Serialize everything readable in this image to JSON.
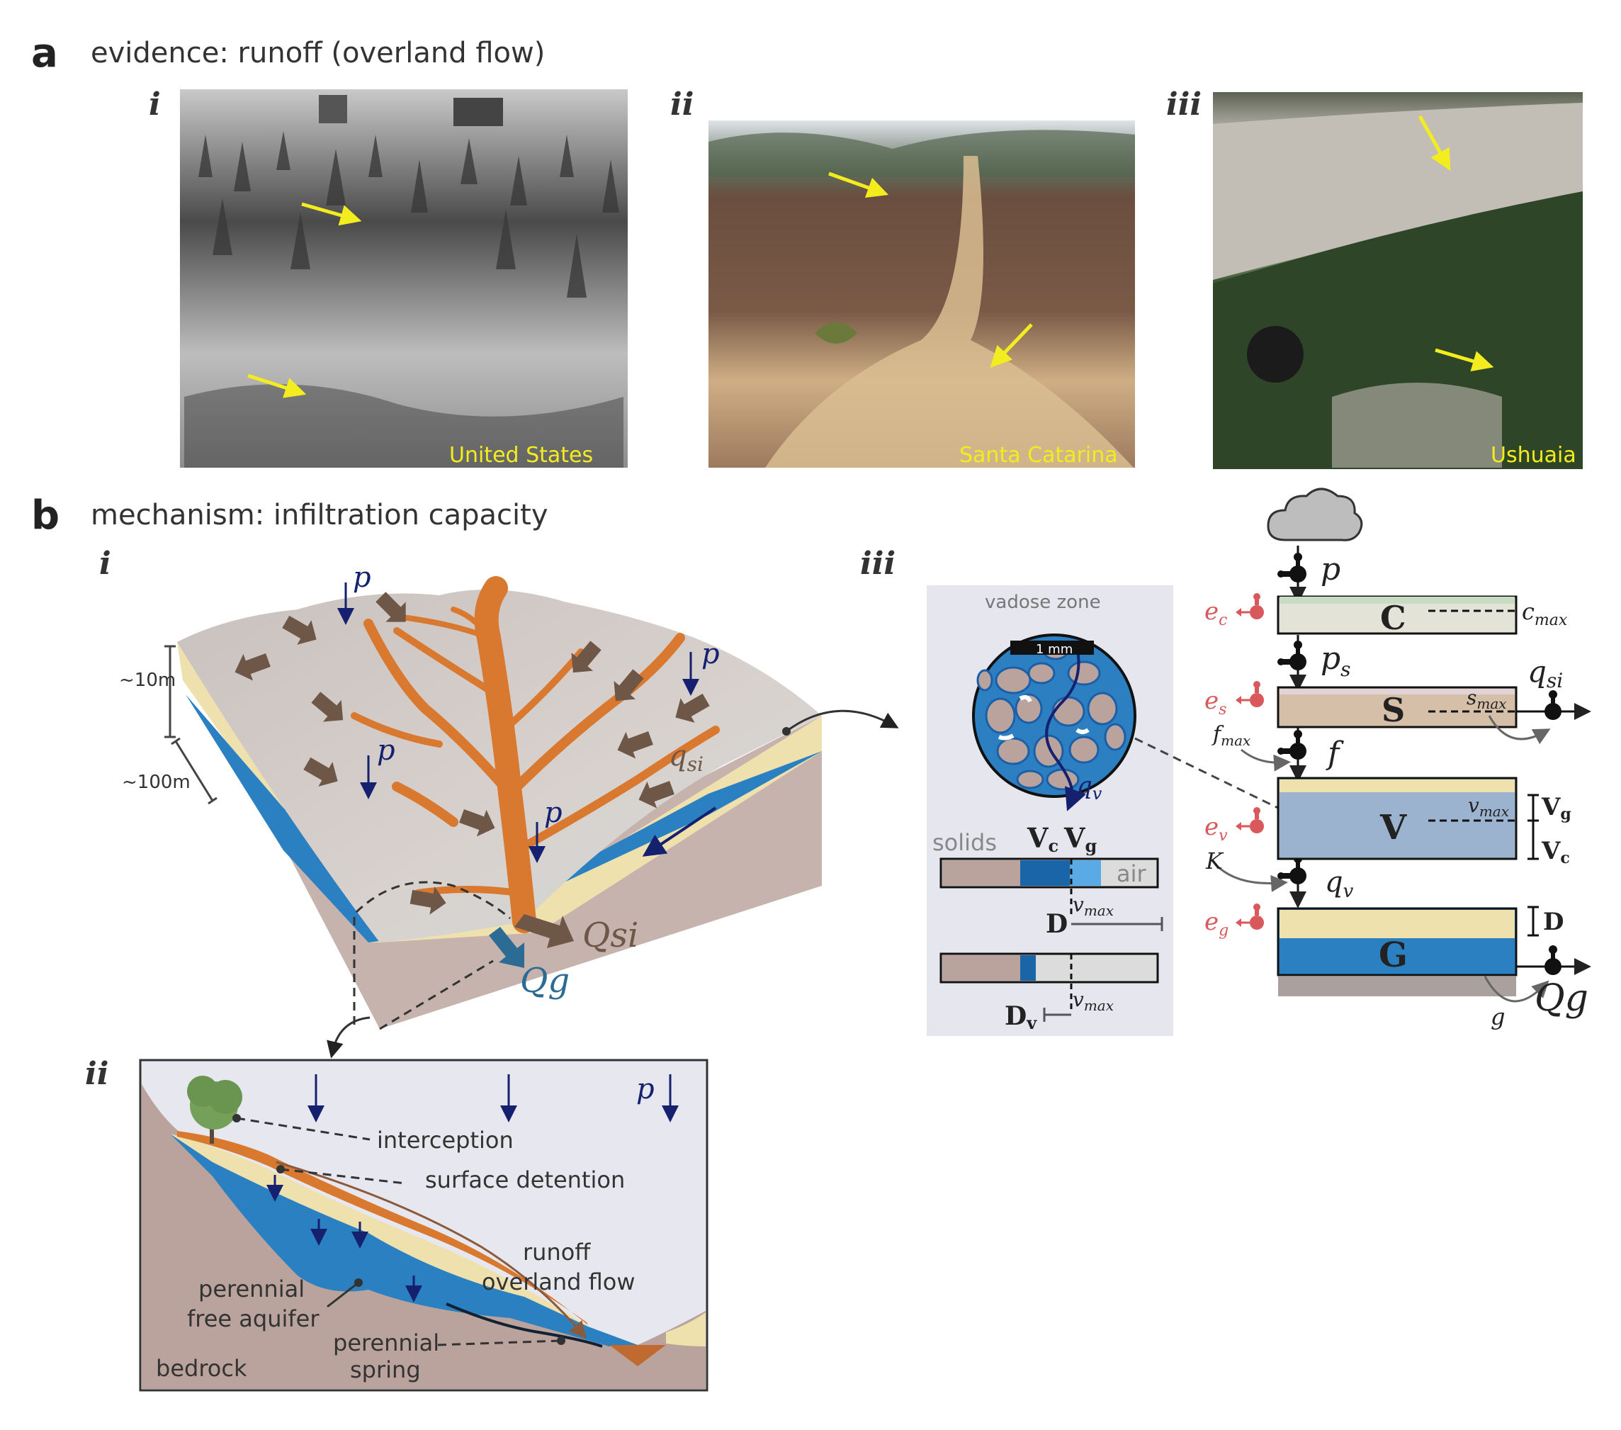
{
  "panel_a": {
    "letter": "a",
    "title": "evidence: runoff (overland flow)",
    "photos": [
      {
        "numeral": "i",
        "caption": "United States"
      },
      {
        "numeral": "ii",
        "caption": "Santa Catarina"
      },
      {
        "numeral": "iii",
        "caption": "Ushuaia"
      }
    ]
  },
  "panel_b": {
    "letter": "b",
    "title": "mechanism: infiltration capacity",
    "sub_i": {
      "numeral": "i",
      "scale_10m": "~10m",
      "scale_100m": "~100m",
      "p": "p",
      "qsi_q": "q",
      "qsi_sub": "si",
      "Qsi": "Qsi",
      "Qg": "Qg"
    },
    "sub_ii": {
      "numeral": "ii",
      "p": "p",
      "interception": "interception",
      "surface_detention": "surface detention",
      "runoff_l1": "runoff",
      "runoff_l2": "overland flow",
      "aquifer_l1": "perennial",
      "aquifer_l2": "free aquifer",
      "spring_l1": "perennial",
      "spring_l2": "spring",
      "bedrock": "bedrock"
    },
    "sub_iii": {
      "numeral": "iii",
      "vadose_zone": "vadose zone",
      "scale_bar": "1 mm",
      "qv_q": "q",
      "qv_sub": "v",
      "solids": "solids",
      "Vc_V": "V",
      "Vc_sub": "c",
      "Vg_V": "V",
      "Vg_sub": "g",
      "air": "air",
      "vmax_v": "v",
      "vmax_sub": "max",
      "D": "D",
      "Dv_D": "D",
      "Dv_sub": "v"
    },
    "model": {
      "p": "p",
      "C": "C",
      "cmax_c": "c",
      "cmax_sub": "max",
      "ec_e": "e",
      "ec_sub": "c",
      "ps_p": "p",
      "ps_sub": "s",
      "S": "S",
      "smax_s": "s",
      "smax_sub": "max",
      "es_e": "e",
      "es_sub": "s",
      "qsi_q": "q",
      "qsi_sub": "si",
      "fmax_f": "f",
      "fmax_sub": "max",
      "f": "f",
      "V": "V",
      "vmax_v": "v",
      "vmax_sub": "max",
      "ev_e": "e",
      "ev_sub": "v",
      "Vg_V": "V",
      "Vg_sub": "g",
      "Vc_V": "V",
      "Vc_sub": "c",
      "K": "K",
      "qv_q": "q",
      "qv_sub": "v",
      "G": "G",
      "eg_e": "e",
      "eg_sub": "g",
      "D": "D",
      "g": "g",
      "Qg": "Qg"
    }
  },
  "colors": {
    "orange": "#d9782f",
    "brown": "#6e5746",
    "blue": "#2b80c2",
    "navy": "#15206e",
    "sand": "#efe1ae",
    "rock": "#b9a39c",
    "evap": "#d9585c",
    "yellow": "#f3ec1f"
  }
}
